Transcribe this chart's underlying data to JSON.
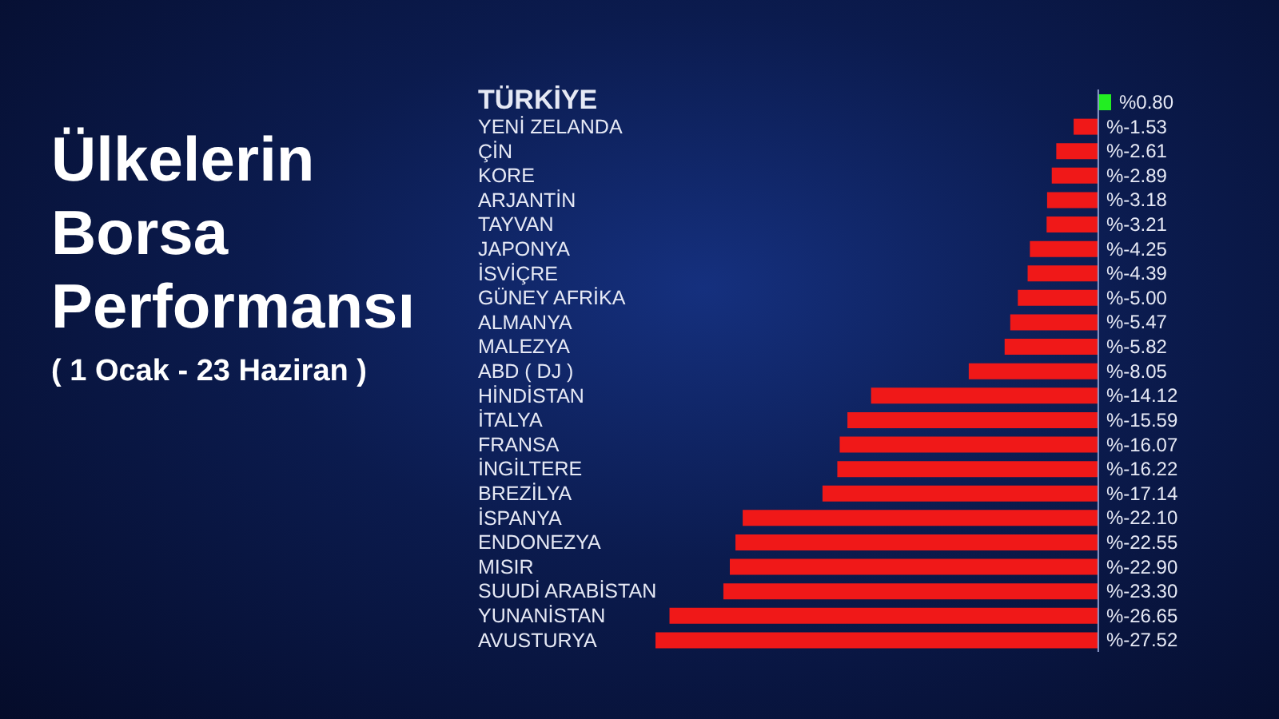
{
  "chart_data": {
    "type": "bar",
    "orientation": "horizontal",
    "title": "Ülkelerin Borsa Performansı",
    "subtitle": "( 1 Ocak - 23 Haziran )",
    "categories": [
      "TÜRKİYE",
      "YENİ ZELANDA",
      "ÇİN",
      "KORE",
      "ARJANTİN",
      "TAYVAN",
      "JAPONYA",
      "İSVİÇRE",
      "GÜNEY AFRİKA",
      "ALMANYA",
      "MALEZYA",
      "ABD ( DJ )",
      "HİNDİSTAN",
      "İTALYA",
      "FRANSA",
      "İNGİLTERE",
      "BREZİLYA",
      "İSPANYA",
      "ENDONEZYA",
      "MISIR",
      "SUUDİ ARABİSTAN",
      "YUNANİSTAN",
      "AVUSTURYA"
    ],
    "values": [
      0.8,
      -1.53,
      -2.61,
      -2.89,
      -3.18,
      -3.21,
      -4.25,
      -4.39,
      -5.0,
      -5.47,
      -5.82,
      -8.05,
      -14.12,
      -15.59,
      -16.07,
      -16.22,
      -17.14,
      -22.1,
      -22.55,
      -22.9,
      -23.3,
      -26.65,
      -27.52
    ],
    "value_labels": [
      "%0.80",
      "%-1.53",
      "%-2.61",
      "%-2.89",
      "%-3.18",
      "%-3.21",
      "%-4.25",
      "%-4.39",
      "%-5.00",
      "%-5.47",
      "%-5.82",
      "%-8.05",
      "%-14.12",
      "%-15.59",
      "%-16.07",
      "%-16.22",
      "%-17.14",
      "%-22.10",
      "%-22.55",
      "%-22.90",
      "%-23.30",
      "%-26.65",
      "%-27.52"
    ],
    "colors": [
      "#22ee22",
      "#f01818",
      "#f01818",
      "#f01818",
      "#f01818",
      "#f01818",
      "#f01818",
      "#f01818",
      "#f01818",
      "#f01818",
      "#f01818",
      "#f01818",
      "#f01818",
      "#f01818",
      "#f01818",
      "#f01818",
      "#f01818",
      "#f01818",
      "#f01818",
      "#f01818",
      "#f01818",
      "#f01818",
      "#f01818"
    ],
    "ref_lines": [
      {
        "axis": "x",
        "value": 0,
        "color": "#8a97c8"
      }
    ]
  }
}
